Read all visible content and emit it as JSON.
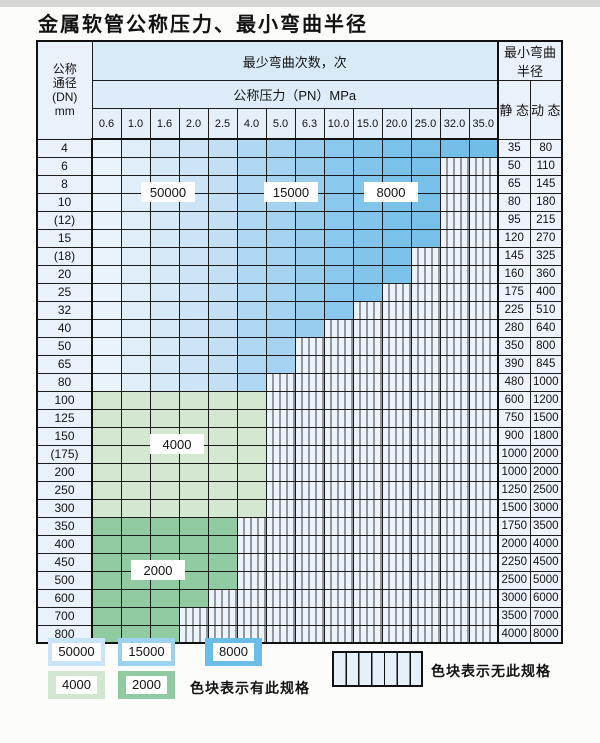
{
  "page": {
    "title": "金属软管公称压力、最小弯曲半径"
  },
  "table": {
    "corner_header": "公称\n通径\n(DN)\nmm",
    "bend_count_header": "最少弯曲次数，次",
    "pressure_header": "公称压力（PN）MPa",
    "radius_header": "最小弯曲半径",
    "static_header": "静 态",
    "dynamic_header": "动 态",
    "pressure_columns": [
      "0.6",
      "1.0",
      "1.6",
      "2.0",
      "2.5",
      "4.0",
      "5.0",
      "6.3",
      "10.0",
      "15.0",
      "20.0",
      "25.0",
      "32.0",
      "35.0"
    ],
    "rows": [
      {
        "dn": "4",
        "zone": "blue",
        "available_through": "35.0",
        "static": "35",
        "dynamic": "80"
      },
      {
        "dn": "6",
        "zone": "blue",
        "available_through": "25.0",
        "static": "50",
        "dynamic": "110"
      },
      {
        "dn": "8",
        "zone": "blue",
        "available_through": "25.0",
        "static": "65",
        "dynamic": "145"
      },
      {
        "dn": "10",
        "zone": "blue",
        "available_through": "25.0",
        "static": "80",
        "dynamic": "180"
      },
      {
        "dn": "(12)",
        "zone": "blue",
        "available_through": "25.0",
        "static": "95",
        "dynamic": "215"
      },
      {
        "dn": "15",
        "zone": "blue",
        "available_through": "25.0",
        "static": "120",
        "dynamic": "270"
      },
      {
        "dn": "(18)",
        "zone": "blue",
        "available_through": "20.0",
        "static": "145",
        "dynamic": "325"
      },
      {
        "dn": "20",
        "zone": "blue",
        "available_through": "20.0",
        "static": "160",
        "dynamic": "360"
      },
      {
        "dn": "25",
        "zone": "blue",
        "available_through": "15.0",
        "static": "175",
        "dynamic": "400"
      },
      {
        "dn": "32",
        "zone": "blue",
        "available_through": "10.0",
        "static": "225",
        "dynamic": "510"
      },
      {
        "dn": "40",
        "zone": "blue",
        "available_through": "6.3",
        "static": "280",
        "dynamic": "640"
      },
      {
        "dn": "50",
        "zone": "blue",
        "available_through": "5.0",
        "static": "350",
        "dynamic": "800"
      },
      {
        "dn": "65",
        "zone": "blue",
        "available_through": "5.0",
        "static": "390",
        "dynamic": "845"
      },
      {
        "dn": "80",
        "zone": "blue",
        "available_through": "4.0",
        "static": "480",
        "dynamic": "1000"
      },
      {
        "dn": "100",
        "zone": "green4000",
        "available_through": "4.0",
        "static": "600",
        "dynamic": "1200"
      },
      {
        "dn": "125",
        "zone": "green4000",
        "available_through": "4.0",
        "static": "750",
        "dynamic": "1500"
      },
      {
        "dn": "150",
        "zone": "green4000",
        "available_through": "4.0",
        "static": "900",
        "dynamic": "1800"
      },
      {
        "dn": "(175)",
        "zone": "green4000",
        "available_through": "4.0",
        "static": "1000",
        "dynamic": "2000"
      },
      {
        "dn": "200",
        "zone": "green4000",
        "available_through": "4.0",
        "static": "1000",
        "dynamic": "2000"
      },
      {
        "dn": "250",
        "zone": "green4000",
        "available_through": "4.0",
        "static": "1250",
        "dynamic": "2500"
      },
      {
        "dn": "300",
        "zone": "green4000",
        "available_through": "4.0",
        "static": "1500",
        "dynamic": "3000"
      },
      {
        "dn": "350",
        "zone": "green2000",
        "available_through": "2.5",
        "static": "1750",
        "dynamic": "3500"
      },
      {
        "dn": "400",
        "zone": "green2000",
        "available_through": "2.5",
        "static": "2000",
        "dynamic": "4000"
      },
      {
        "dn": "450",
        "zone": "green2000",
        "available_through": "2.5",
        "static": "2250",
        "dynamic": "4500"
      },
      {
        "dn": "500",
        "zone": "green2000",
        "available_through": "2.5",
        "static": "2500",
        "dynamic": "5000"
      },
      {
        "dn": "600",
        "zone": "green2000",
        "available_through": "2.0",
        "static": "3000",
        "dynamic": "6000"
      },
      {
        "dn": "700",
        "zone": "green2000",
        "available_through": "1.6",
        "static": "3500",
        "dynamic": "7000"
      },
      {
        "dn": "800",
        "zone": "green2000",
        "available_through": "1.6",
        "static": "4000",
        "dynamic": "8000"
      }
    ],
    "overlay_labels": [
      {
        "text": "50000"
      },
      {
        "text": "15000"
      },
      {
        "text": "8000"
      },
      {
        "text": "4000"
      },
      {
        "text": "2000"
      }
    ]
  },
  "legend": {
    "items": [
      {
        "value": "50000",
        "color": "#c9e4f6"
      },
      {
        "value": "15000",
        "color": "#9cd1f0"
      },
      {
        "value": "8000",
        "color": "#6abde7"
      },
      {
        "value": "4000",
        "color": "#d2e7cf"
      },
      {
        "value": "2000",
        "color": "#8fcaa0"
      }
    ],
    "has_spec_label": "色块表示有此规格",
    "no_spec_label": "色块表示无此规格"
  },
  "colors": {
    "blue_columns": [
      "#e9f3fb",
      "#e0eef9",
      "#d6e9f7",
      "#cce4f6",
      "#c2dff4",
      "#b0d8f2",
      "#a4d2f0",
      "#98cdef",
      "#8ac8ed",
      "#82c5ec",
      "#7bc2ea",
      "#76c0e9",
      "#73bfe9",
      "#70bde8"
    ],
    "green_4000": "#d4e8d1",
    "green_2000": "#90cba1",
    "stripe_background": "#ecf4fb",
    "grid": "#1c1c1c"
  }
}
